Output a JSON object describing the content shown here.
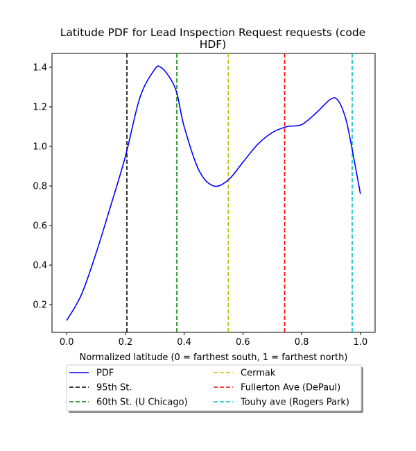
{
  "chart_data": {
    "type": "line",
    "title_line1": "Latitude PDF for Lead Inspection Request  requests (code",
    "title_line2": "HDF)",
    "xlabel": "Normalized latitude (0 = farthest south, 1 = farthest north)",
    "ylabel": "",
    "xlim": [
      -0.05,
      1.05
    ],
    "ylim": [
      0.06,
      1.47
    ],
    "x_ticks": [
      0.0,
      0.2,
      0.4,
      0.6,
      0.8,
      1.0
    ],
    "x_tick_labels": [
      "0.0",
      "0.2",
      "0.4",
      "0.6",
      "0.8",
      "1.0"
    ],
    "y_ticks": [
      0.2,
      0.4,
      0.6,
      0.8,
      1.0,
      1.2,
      1.4
    ],
    "y_tick_labels": [
      "0.2",
      "0.4",
      "0.6",
      "0.8",
      "1.0",
      "1.2",
      "1.4"
    ],
    "grid": false,
    "legend_placement": "below plot, two columns",
    "series": [
      {
        "name": "PDF",
        "color": "#0000ff",
        "x": [
          0.0,
          0.05,
          0.1,
          0.15,
          0.2,
          0.25,
          0.3,
          0.32,
          0.35,
          0.375,
          0.4,
          0.45,
          0.5,
          0.55,
          0.6,
          0.65,
          0.7,
          0.75,
          0.8,
          0.85,
          0.9,
          0.925,
          0.95,
          0.97,
          1.0
        ],
        "y": [
          0.12,
          0.25,
          0.46,
          0.7,
          0.95,
          1.25,
          1.39,
          1.4,
          1.35,
          1.27,
          1.1,
          0.88,
          0.8,
          0.83,
          0.92,
          1.01,
          1.07,
          1.1,
          1.11,
          1.17,
          1.24,
          1.23,
          1.14,
          1.0,
          0.76
        ]
      }
    ],
    "vlines": [
      {
        "name": "95th St.",
        "x": 0.205,
        "color": "#000000"
      },
      {
        "name": "60th St. (U Chicago)",
        "x": 0.375,
        "color": "#008000"
      },
      {
        "name": "Cermak",
        "x": 0.55,
        "color": "#bfbf00"
      },
      {
        "name": "Fullerton Ave (DePaul)",
        "x": 0.742,
        "color": "#ff0000"
      },
      {
        "name": "Touhy ave (Rogers Park)",
        "x": 0.972,
        "color": "#00bfbf"
      }
    ]
  }
}
